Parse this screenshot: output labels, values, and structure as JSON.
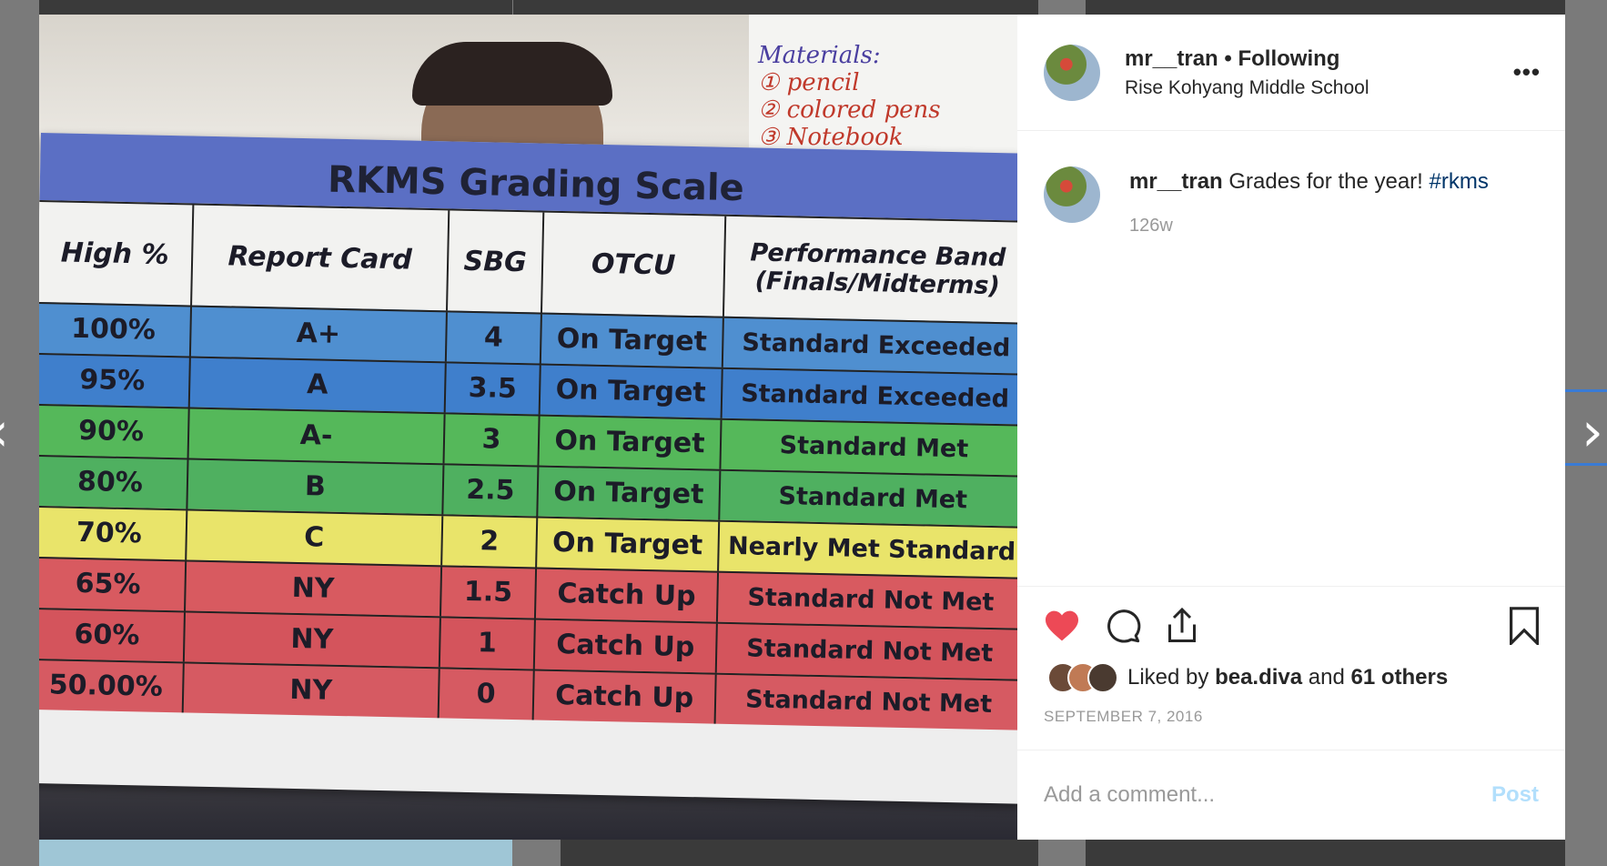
{
  "post": {
    "username": "mr__tran",
    "separator": "•",
    "follow_status": "Following",
    "location": "Rise Kohyang Middle School",
    "more_icon": "ellipsis-icon",
    "caption_text": "Grades for the year!",
    "hashtag": "#rkms",
    "age": "126w",
    "likes_prefix": "Liked by",
    "liked_by_user": "bea.diva",
    "likes_and": "and",
    "likes_others": "61 others",
    "date": "SEPTEMBER 7, 2016",
    "comment_placeholder": "Add a comment...",
    "post_button": "Post",
    "like_color": "#ed4956",
    "hashtag_color": "#003569"
  },
  "photo": {
    "whiteboard": {
      "heading": "Materials:",
      "items": [
        "① pencil",
        "② colored pens",
        "③ Notebook"
      ]
    },
    "poster_title": "RKMS Grading Scale",
    "headers": [
      "High %",
      "Report Card",
      "SBG",
      "OTCU",
      "Performance Band (Finals/Midterms)"
    ],
    "rows": [
      {
        "color": "#4f8fd0",
        "cells": [
          "100%",
          "A+",
          "4",
          "On Target",
          "Standard Exceeded"
        ]
      },
      {
        "color": "#3f7fcc",
        "cells": [
          "95%",
          "A",
          "3.5",
          "On Target",
          "Standard Exceeded"
        ]
      },
      {
        "color": "#55b85a",
        "cells": [
          "90%",
          "A-",
          "3",
          "On Target",
          "Standard Met"
        ]
      },
      {
        "color": "#4fb060",
        "cells": [
          "80%",
          "B",
          "2.5",
          "On Target",
          "Standard Met"
        ]
      },
      {
        "color": "#e9e46a",
        "cells": [
          "70%",
          "C",
          "2",
          "On Target",
          "Nearly Met Standard"
        ]
      },
      {
        "color": "#d85a60",
        "cells": [
          "65%",
          "NY",
          "1.5",
          "Catch Up",
          "Standard Not Met"
        ]
      },
      {
        "color": "#d4545c",
        "cells": [
          "60%",
          "NY",
          "1",
          "Catch Up",
          "Standard Not Met"
        ]
      },
      {
        "color": "#d65a62",
        "cells": [
          "50.00%",
          "NY",
          "0",
          "Catch Up",
          "Standard Not Met"
        ]
      }
    ]
  },
  "nav": {
    "prev_icon": "chevron-left-icon",
    "next_icon": "chevron-right-icon"
  }
}
